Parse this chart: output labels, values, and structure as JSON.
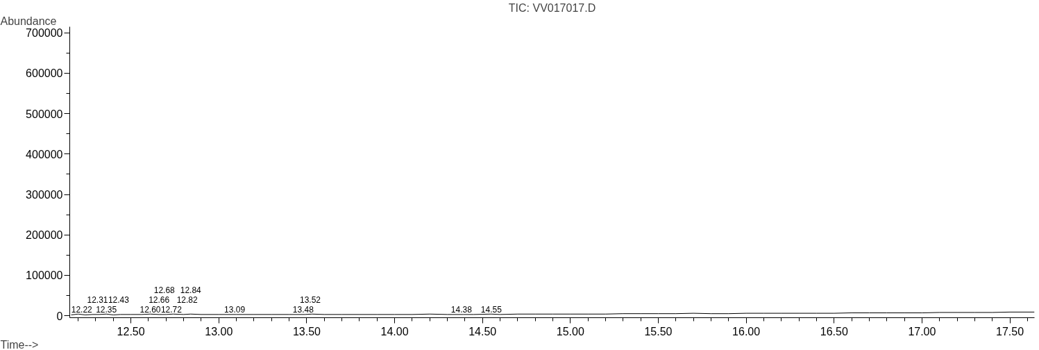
{
  "chart_data": {
    "type": "line",
    "title": "TIC: VV017017.D",
    "xlabel": "Time-->",
    "ylabel": "Abundance",
    "x": [
      12.16,
      12.2,
      12.24,
      12.28,
      12.32,
      12.36,
      12.4,
      12.44,
      12.5,
      12.56,
      12.61,
      12.66,
      12.7,
      12.74,
      12.8,
      12.84,
      12.9,
      13.0,
      13.1,
      13.2,
      13.3,
      13.4,
      13.49,
      13.53,
      13.6,
      13.7,
      13.8,
      13.9,
      14.0,
      14.1,
      14.2,
      14.3,
      14.39,
      14.45,
      14.55,
      14.6,
      14.7,
      14.8,
      14.9,
      15.0,
      15.1,
      15.2,
      15.3,
      15.4,
      15.5,
      15.6,
      15.7,
      15.8,
      15.9,
      16.0,
      16.1,
      16.2,
      16.3,
      16.4,
      16.5,
      16.6,
      16.7,
      16.8,
      16.9,
      17.0,
      17.1,
      17.2,
      17.3,
      17.4,
      17.5,
      17.64
    ],
    "series": [
      {
        "color": "#000000",
        "values": [
          2000,
          4000,
          2000,
          3000,
          3000,
          4000,
          2000,
          3000,
          3000,
          3000,
          4000,
          3000,
          3000,
          4000,
          3000,
          4000,
          3000,
          3000,
          3000,
          3000,
          3000,
          3000,
          3000,
          4000,
          3000,
          3000,
          3000,
          3000,
          3000,
          3000,
          4000,
          3000,
          3000,
          3000,
          4000,
          3000,
          4000,
          4000,
          4000,
          4000,
          4000,
          4000,
          5000,
          5000,
          5000,
          5000,
          6000,
          5000,
          5000,
          6000,
          6000,
          6000,
          6000,
          6000,
          6000,
          7000,
          7000,
          7000,
          7000,
          7000,
          8000,
          8000,
          8000,
          8000,
          9000,
          9000
        ]
      }
    ],
    "xlim": [
      12.152,
      17.64
    ],
    "ylim": [
      -5000,
      715000
    ],
    "xticks": [
      {
        "value": 12.5,
        "label": "12.50"
      },
      {
        "value": 13,
        "label": "13.00"
      },
      {
        "value": 13.5,
        "label": "13.50"
      },
      {
        "value": 14,
        "label": "14.00"
      },
      {
        "value": 14.5,
        "label": "14.50"
      },
      {
        "value": 15,
        "label": "15.00"
      },
      {
        "value": 15.5,
        "label": "15.50"
      },
      {
        "value": 16,
        "label": "16.00"
      },
      {
        "value": 16.5,
        "label": "16.50"
      },
      {
        "value": 17,
        "label": "17.00"
      },
      {
        "value": 17.5,
        "label": "17.50"
      }
    ],
    "yticks": [
      0,
      100000,
      200000,
      300000,
      400000,
      500000,
      600000,
      700000
    ],
    "grid": false,
    "marker": "none",
    "line_style": "solid",
    "annotations": [
      {
        "text": "12.22",
        "x": 12.22,
        "y": 3000
      },
      {
        "text": "12.31",
        "x": 12.31,
        "y": 3000
      },
      {
        "text": "12.35",
        "x": 12.36,
        "y": 3000
      },
      {
        "text": "12.43",
        "x": 12.43,
        "y": 3000
      },
      {
        "text": "12.60",
        "x": 12.61,
        "y": 3000
      },
      {
        "text": "12.66",
        "x": 12.66,
        "y": 3000
      },
      {
        "text": "12.68",
        "x": 12.69,
        "y": 3000
      },
      {
        "text": "12.72",
        "x": 12.73,
        "y": 3000
      },
      {
        "text": "12.82",
        "x": 12.82,
        "y": 3000
      },
      {
        "text": "12.84",
        "x": 12.84,
        "y": 3000
      },
      {
        "text": "13.09",
        "x": 13.09,
        "y": 3000
      },
      {
        "text": "13.48",
        "x": 13.48,
        "y": 3000
      },
      {
        "text": "13.52",
        "x": 13.52,
        "y": 3000
      },
      {
        "text": "14.38",
        "x": 14.38,
        "y": 3000
      },
      {
        "text": "14.55",
        "x": 14.55,
        "y": 3000
      }
    ]
  }
}
